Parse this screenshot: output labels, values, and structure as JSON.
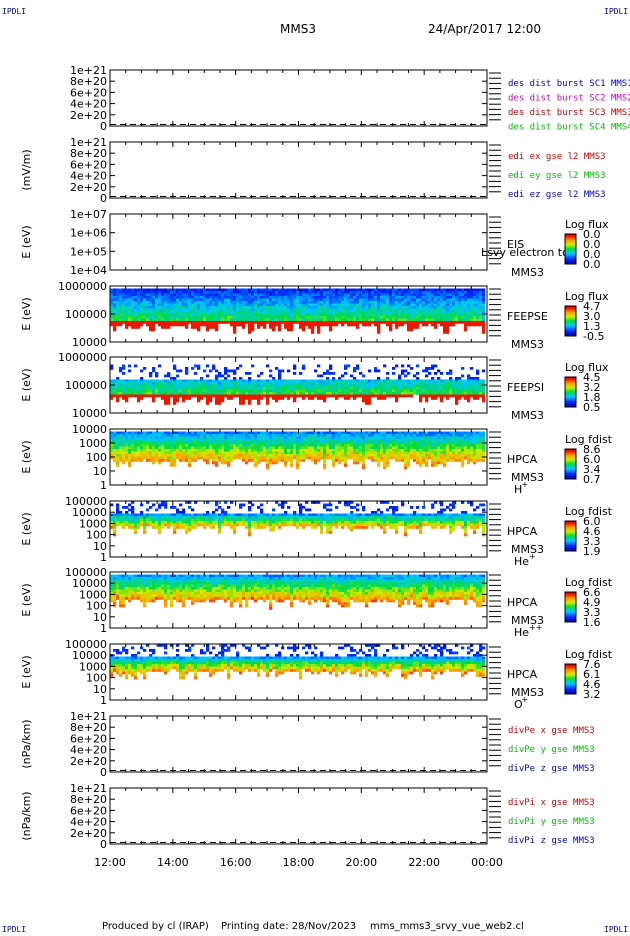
{
  "header": {
    "corner_label": "IPDLI",
    "spacecraft": "MMS3",
    "datetime": "24/Apr/2017 12:00"
  },
  "footer": {
    "produced": "Produced by cl (IRAP)",
    "printed": "Printing date: 28/Nov/2023",
    "script": "mms_mms3_srvy_vue_web2.cl"
  },
  "time_axis": {
    "ticks": [
      "12:00",
      "14:00",
      "16:00",
      "18:00",
      "20:00",
      "22:00",
      "00:00"
    ]
  },
  "chart_data": [
    {
      "type": "line",
      "panel": "des_dist",
      "ylabel": "",
      "yticks": [
        "1e+21",
        "8e+20",
        "6e+20",
        "4e+20",
        "2e+20",
        "0"
      ],
      "ylim": [
        0,
        1e+21
      ],
      "series": [
        {
          "name": "des dist burst SC1 MMS1",
          "color": "#0000cc"
        },
        {
          "name": "des dist burst SC2 MMS2",
          "color": "#cc00cc"
        },
        {
          "name": "des dist burst SC3 MMS3",
          "color": "#cc0000"
        },
        {
          "name": "des dist burst SC4 MMS4",
          "color": "#00bb00"
        }
      ],
      "zero_line": "dashed"
    },
    {
      "type": "line",
      "panel": "edi",
      "ylabel": "(mV/m)",
      "yticks": [
        "1e+21",
        "8e+20",
        "6e+20",
        "4e+20",
        "2e+20",
        "0"
      ],
      "ylim": [
        0,
        1e+21
      ],
      "series": [
        {
          "name": "edi ex gse l2 MMS3",
          "color": "#cc0000"
        },
        {
          "name": "edi ey gse l2 MMS3",
          "color": "#00bb00"
        },
        {
          "name": "edi ez gse l2 MMS3",
          "color": "#0000cc"
        }
      ],
      "zero_line": "dashed"
    },
    {
      "type": "heatmap",
      "panel": "eis",
      "ylabel": "E (eV)",
      "yticks": [
        "1e+07",
        "1e+06",
        "1e+05",
        "1e+04"
      ],
      "scale": "log",
      "instrument": "EIS",
      "spacecraft": "MMS3",
      "overlay_text": "Lsvy electron to",
      "colorbar_title": "Log flux",
      "colorbar_ticks": [
        "0.0",
        "0.0",
        "0.0",
        "0.0"
      ],
      "empty": true
    },
    {
      "type": "heatmap",
      "panel": "feeps_e",
      "ylabel": "E (eV)",
      "yticks": [
        "1000000",
        "100000",
        "10000"
      ],
      "scale": "log",
      "instrument": "FEEPSE",
      "spacecraft": "MMS3",
      "colorbar_title": "Log flux",
      "colorbar_ticks": [
        "4.7",
        "3.0",
        "1.3",
        "-0.5"
      ],
      "pattern": "feepse"
    },
    {
      "type": "heatmap",
      "panel": "feeps_i",
      "ylabel": "E (eV)",
      "yticks": [
        "1000000",
        "100000",
        "10000"
      ],
      "scale": "log",
      "instrument": "FEEPSI",
      "spacecraft": "MMS3",
      "colorbar_title": "Log flux",
      "colorbar_ticks": [
        "4.5",
        "3.2",
        "1.8",
        "0.5"
      ],
      "pattern": "feepsi"
    },
    {
      "type": "heatmap",
      "panel": "hpca_h",
      "ylabel": "E (eV)",
      "yticks": [
        "10000",
        "1000",
        "100",
        "10",
        "1"
      ],
      "scale": "log",
      "instrument": "HPCA",
      "spacecraft": "MMS3",
      "species": "H",
      "species_charge": "+",
      "colorbar_title": "Log fdist",
      "colorbar_ticks": [
        "8.6",
        "6.0",
        "3.4",
        "0.7"
      ],
      "pattern": "hpca_h"
    },
    {
      "type": "heatmap",
      "panel": "hpca_he1",
      "ylabel": "E (eV)",
      "yticks": [
        "100000",
        "10000",
        "1000",
        "100",
        "10",
        "1"
      ],
      "scale": "log",
      "instrument": "HPCA",
      "spacecraft": "MMS3",
      "species": "He",
      "species_charge": "+",
      "colorbar_title": "Log fdist",
      "colorbar_ticks": [
        "6.0",
        "4.6",
        "3.3",
        "1.9"
      ],
      "pattern": "hpca_he1"
    },
    {
      "type": "heatmap",
      "panel": "hpca_he2",
      "ylabel": "E (eV)",
      "yticks": [
        "100000",
        "10000",
        "1000",
        "100",
        "10",
        "1"
      ],
      "scale": "log",
      "instrument": "HPCA",
      "spacecraft": "MMS3",
      "species": "He",
      "species_charge": "++",
      "colorbar_title": "Log fdist",
      "colorbar_ticks": [
        "6.6",
        "4.9",
        "3.3",
        "1.6"
      ],
      "pattern": "hpca_he2"
    },
    {
      "type": "heatmap",
      "panel": "hpca_o",
      "ylabel": "E (eV)",
      "yticks": [
        "100000",
        "10000",
        "1000",
        "100",
        "10",
        "1"
      ],
      "scale": "log",
      "instrument": "HPCA",
      "spacecraft": "MMS3",
      "species": "O",
      "species_charge": "+",
      "colorbar_title": "Log fdist",
      "colorbar_ticks": [
        "7.6",
        "6.1",
        "4.6",
        "3.2"
      ],
      "pattern": "hpca_o"
    },
    {
      "type": "line",
      "panel": "divpe",
      "ylabel": "(nPa/km)",
      "yticks": [
        "1e+21",
        "8e+20",
        "6e+20",
        "4e+20",
        "2e+20",
        "0"
      ],
      "ylim": [
        0,
        1e+21
      ],
      "series": [
        {
          "name": "divPe x gse MMS3",
          "color": "#cc0000"
        },
        {
          "name": "divPe y gse MMS3",
          "color": "#00bb00"
        },
        {
          "name": "divPe z gse MMS3",
          "color": "#0000cc"
        }
      ],
      "zero_line": "dashed"
    },
    {
      "type": "line",
      "panel": "divpi",
      "ylabel": "(nPa/km)",
      "yticks": [
        "1e+21",
        "8e+20",
        "6e+20",
        "4e+20",
        "2e+20",
        "0"
      ],
      "ylim": [
        0,
        1e+21
      ],
      "series": [
        {
          "name": "divPi x gse MMS3",
          "color": "#cc0000"
        },
        {
          "name": "divPi y gse MMS3",
          "color": "#00bb00"
        },
        {
          "name": "divPi z gse MMS3",
          "color": "#0000cc"
        }
      ],
      "zero_line": "dashed"
    }
  ]
}
